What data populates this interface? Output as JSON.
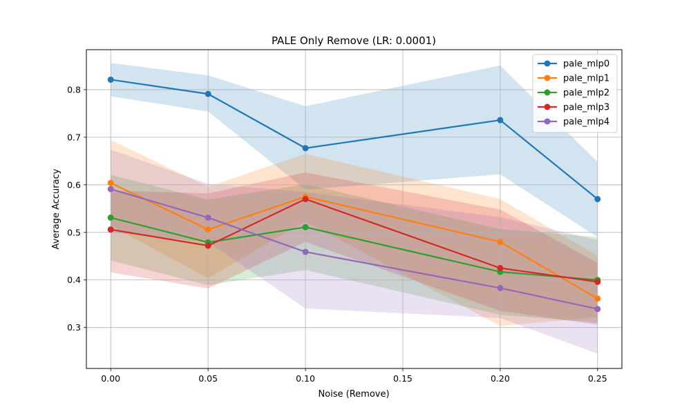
{
  "chart_data": {
    "type": "line",
    "title": "PALE Only Remove (LR: 0.0001)",
    "xlabel": "Noise (Remove)",
    "ylabel": "Average Accuracy",
    "x": [
      0.0,
      0.05,
      0.1,
      0.2,
      0.25
    ],
    "xticks": [
      0.0,
      0.05,
      0.1,
      0.15,
      0.2,
      0.25
    ],
    "xtick_labels": [
      "0.00",
      "0.05",
      "0.10",
      "0.15",
      "0.20",
      "0.25"
    ],
    "yticks": [
      0.3,
      0.4,
      0.5,
      0.6,
      0.7,
      0.8
    ],
    "ytick_labels": [
      "0.3",
      "0.4",
      "0.5",
      "0.6",
      "0.7",
      "0.8"
    ],
    "xlim": [
      -0.0125,
      0.2625
    ],
    "ylim": [
      0.214,
      0.884
    ],
    "grid": true,
    "legend_position": "top-right",
    "series": [
      {
        "name": "pale_mlp0",
        "color": "#1f77b4",
        "values": [
          0.821,
          0.791,
          0.677,
          0.736,
          0.57
        ],
        "band_lower": [
          0.786,
          0.754,
          0.59,
          0.622,
          0.49
        ],
        "band_upper": [
          0.856,
          0.83,
          0.765,
          0.851,
          0.648
        ]
      },
      {
        "name": "pale_mlp1",
        "color": "#ff7f0e",
        "values": [
          0.604,
          0.506,
          0.575,
          0.48,
          0.361
        ],
        "band_lower": [
          0.514,
          0.404,
          0.523,
          0.303,
          0.322
        ]
      },
      {
        "name": "pale_mlp2",
        "color": "#2ca02c",
        "values": [
          0.531,
          0.479,
          0.511,
          0.417,
          0.4
        ]
      },
      {
        "name": "pale_mlp3",
        "color": "#d62728",
        "values": [
          0.506,
          0.472,
          0.57,
          0.425,
          0.396
        ],
        "band_upper": [
          0.588,
          0.582,
          0.626,
          0.548,
          0.436
        ]
      },
      {
        "name": "pale_mlp4",
        "color": "#9467bd",
        "values": [
          0.591,
          0.531,
          0.459,
          0.383,
          0.339
        ],
        "band_lower": [
          0.5,
          0.48,
          0.34,
          0.32,
          0.245
        ],
        "band_upper": [
          0.674,
          0.602,
          0.585,
          0.532,
          0.484
        ]
      }
    ]
  }
}
